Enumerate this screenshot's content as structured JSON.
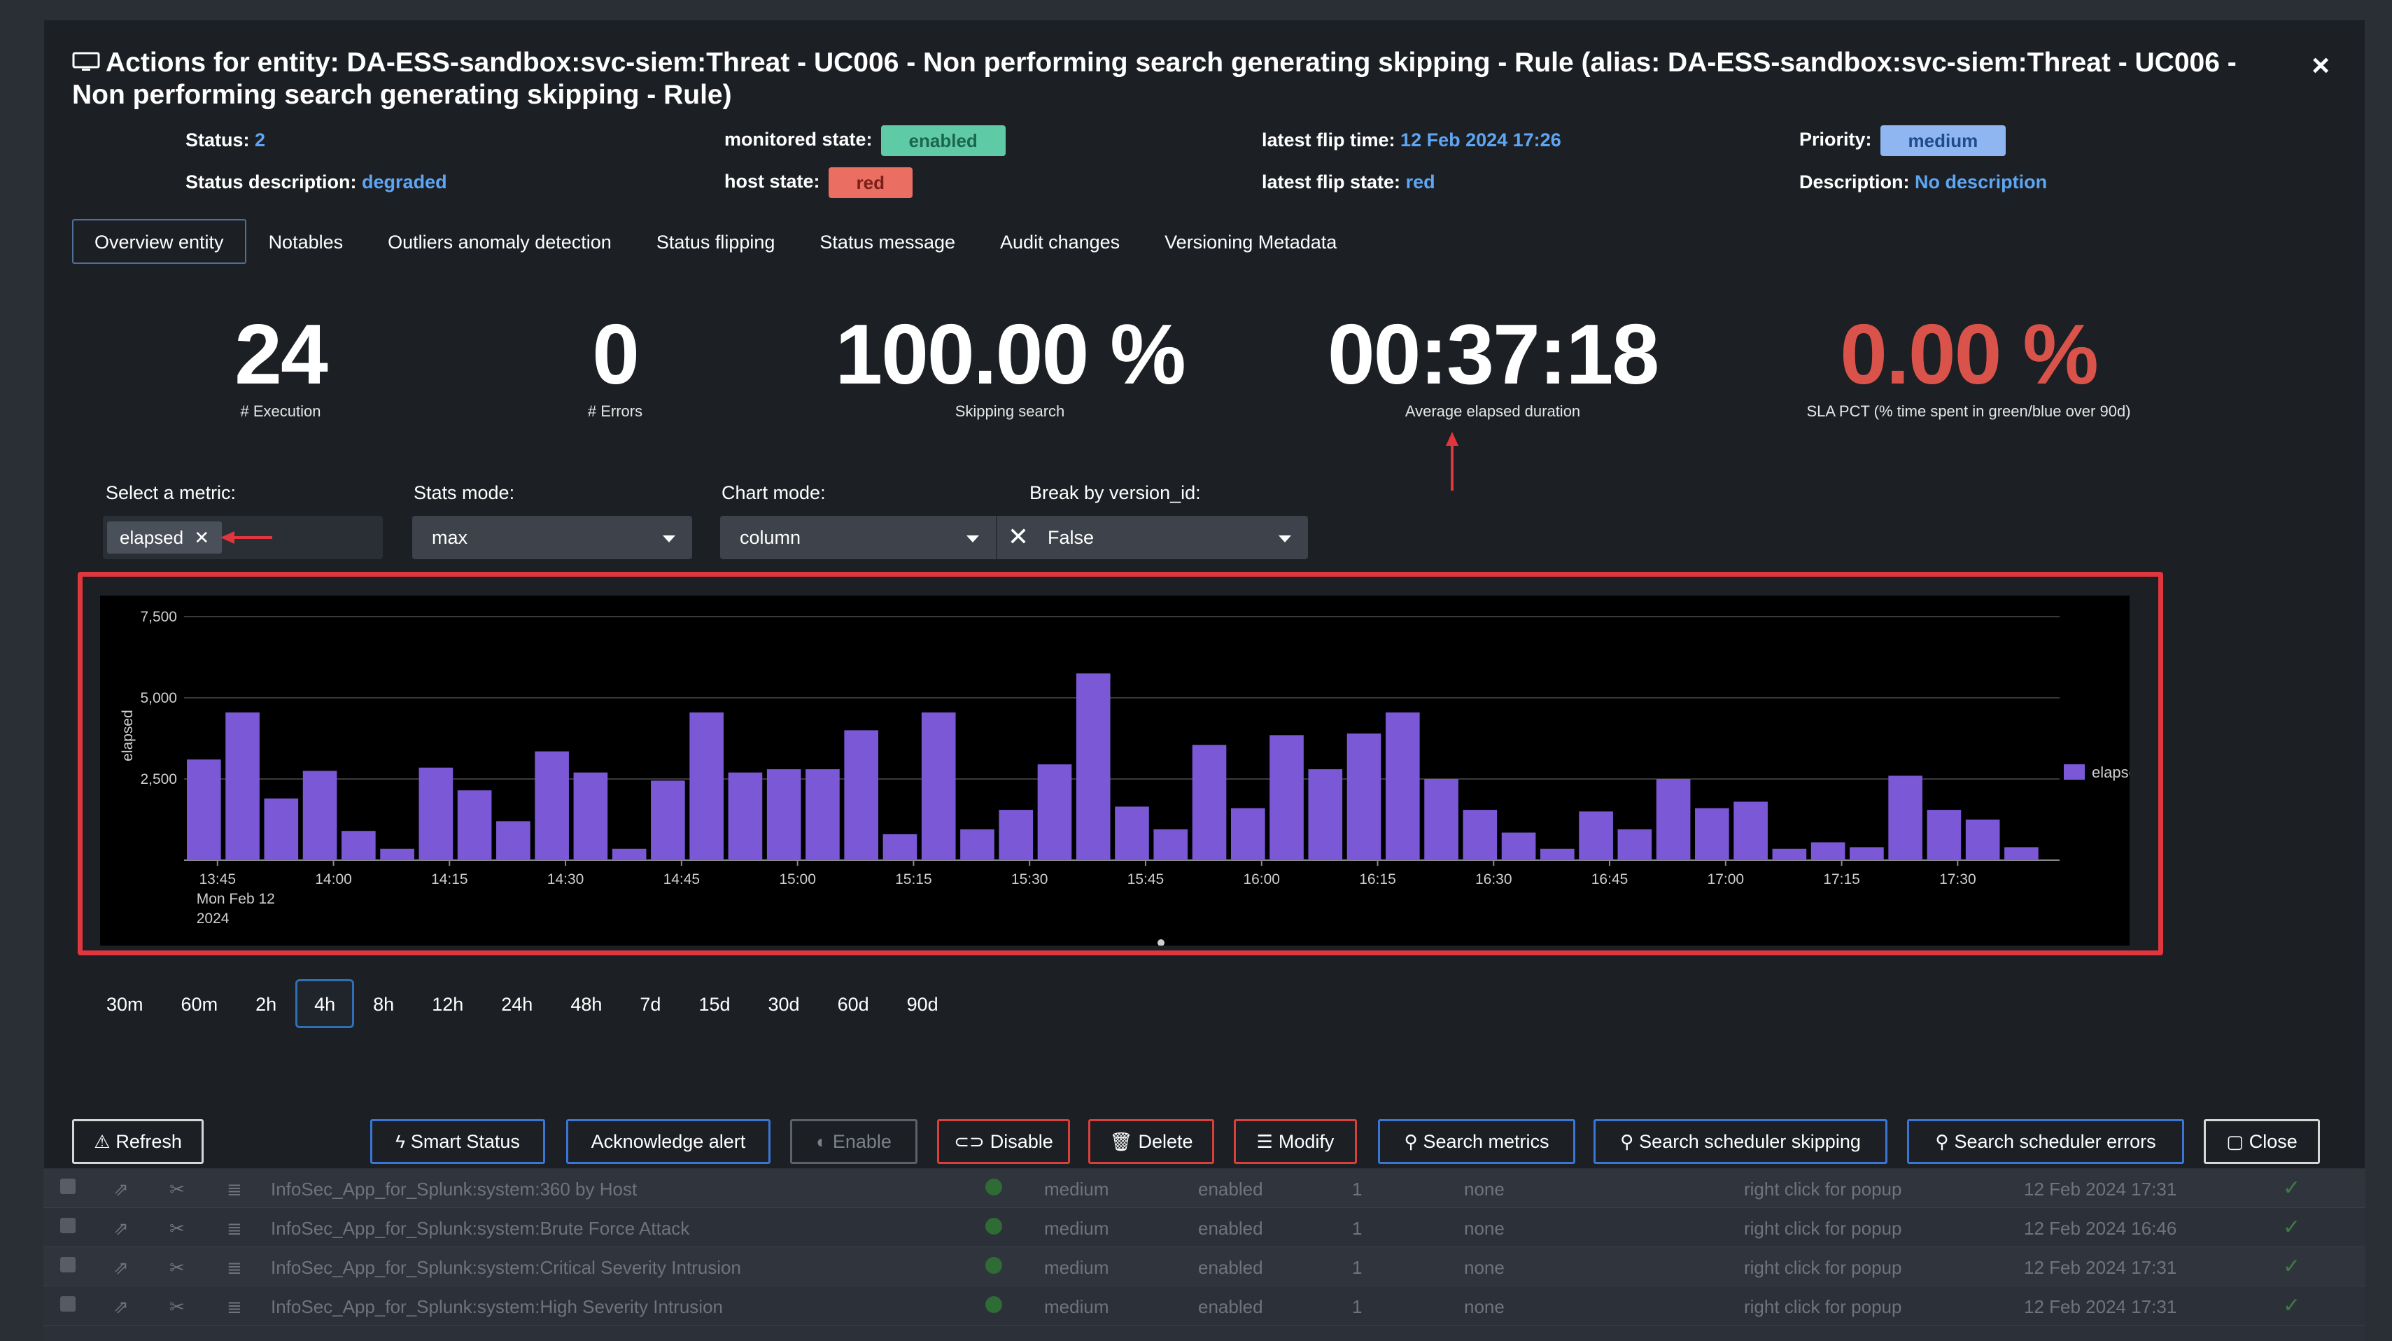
{
  "modal": {
    "title": "Actions for entity: DA-ESS-sandbox:svc-siem:Threat - UC006 - Non performing search generating skipping - Rule (alias: DA-ESS-sandbox:svc-siem:Threat - UC006 - Non performing search generating skipping - Rule)",
    "close": "×"
  },
  "info": {
    "status_label": "Status:",
    "status_value": "2",
    "status_desc_label": "Status description:",
    "status_desc_value": "degraded",
    "monitored_label": "monitored state:",
    "monitored_value": "enabled",
    "host_label": "host state:",
    "host_value": "red",
    "flip_time_label": "latest flip time:",
    "flip_time_value": "12 Feb 2024 17:26",
    "flip_state_label": "latest flip state:",
    "flip_state_value": "red",
    "priority_label": "Priority:",
    "priority_value": "medium",
    "description_label": "Description:",
    "description_value": "No description"
  },
  "tabs": [
    "Overview entity",
    "Notables",
    "Outliers anomaly detection",
    "Status flipping",
    "Status message",
    "Audit changes",
    "Versioning Metadata"
  ],
  "stats": {
    "execution_value": "24",
    "execution_label": "# Execution",
    "errors_value": "0",
    "errors_label": "# Errors",
    "skipping_value": "100.00 %",
    "skipping_label": "Skipping search",
    "elapsed_value": "00:37:18",
    "elapsed_label": "Average elapsed duration",
    "sla_value": "0.00 %",
    "sla_label": "SLA PCT (% time spent in green/blue over 90d)"
  },
  "controls": {
    "metric_label": "Select a metric:",
    "metric_chip": "elapsed",
    "stats_label": "Stats mode:",
    "stats_value": "max",
    "chart_label": "Chart mode:",
    "chart_value": "column",
    "break_label": "Break by version_id:",
    "break_value": "False"
  },
  "chart_data": {
    "type": "bar",
    "ylabel": "elapsed",
    "ylim": [
      0,
      7500
    ],
    "yticks": [
      "2,500",
      "5,000",
      "7,500"
    ],
    "ytick_values": [
      2500,
      5000,
      7500
    ],
    "xtick_labels": [
      "13:45",
      "14:00",
      "14:15",
      "14:30",
      "14:45",
      "15:00",
      "15:15",
      "15:30",
      "15:45",
      "16:00",
      "16:15",
      "16:30",
      "16:45",
      "17:00",
      "17:15",
      "17:30"
    ],
    "xtick_first_extra": [
      "Mon Feb 12",
      "2024"
    ],
    "legend": "elapsed",
    "color": "#7b59d6",
    "values": [
      3100,
      4550,
      1900,
      2750,
      900,
      350,
      2850,
      2150,
      1200,
      3350,
      2700,
      350,
      2450,
      4550,
      2700,
      2800,
      2800,
      4000,
      800,
      4550,
      950,
      1550,
      2950,
      5750,
      1650,
      950,
      3550,
      1600,
      3850,
      2800,
      3900,
      4550,
      2500,
      1550,
      850,
      350,
      1500,
      950,
      2500,
      1600,
      1800,
      350,
      550,
      400,
      2600,
      1550,
      1250,
      400
    ]
  },
  "time_range": [
    "30m",
    "60m",
    "2h",
    "4h",
    "8h",
    "12h",
    "24h",
    "48h",
    "7d",
    "15d",
    "30d",
    "60d",
    "90d"
  ],
  "time_range_active": "4h",
  "buttons": {
    "refresh": "Refresh",
    "smart_status": "Smart Status",
    "acknowledge": "Acknowledge alert",
    "enable": "Enable",
    "disable": "Disable",
    "delete": "Delete",
    "modify": "Modify",
    "search_metrics": "Search metrics",
    "search_skipping": "Search scheduler skipping",
    "search_errors": "Search scheduler errors",
    "close": "Close"
  },
  "background_rows": [
    {
      "name": "InfoSec_App_for_Splunk:system:360 by Host",
      "priority": "medium",
      "state": "enabled",
      "count": "1",
      "none": "none",
      "popup": "right click for popup",
      "time": "12 Feb 2024 17:31"
    },
    {
      "name": "InfoSec_App_for_Splunk:system:Brute Force Attack",
      "priority": "medium",
      "state": "enabled",
      "count": "1",
      "none": "none",
      "popup": "right click for popup",
      "time": "12 Feb 2024 16:46"
    },
    {
      "name": "InfoSec_App_for_Splunk:system:Critical Severity Intrusion",
      "priority": "medium",
      "state": "enabled",
      "count": "1",
      "none": "none",
      "popup": "right click for popup",
      "time": "12 Feb 2024 17:31"
    },
    {
      "name": "InfoSec_App_for_Splunk:system:High Severity Intrusion",
      "priority": "medium",
      "state": "enabled",
      "count": "1",
      "none": "none",
      "popup": "right click for popup",
      "time": "12 Feb 2024 17:31"
    }
  ]
}
